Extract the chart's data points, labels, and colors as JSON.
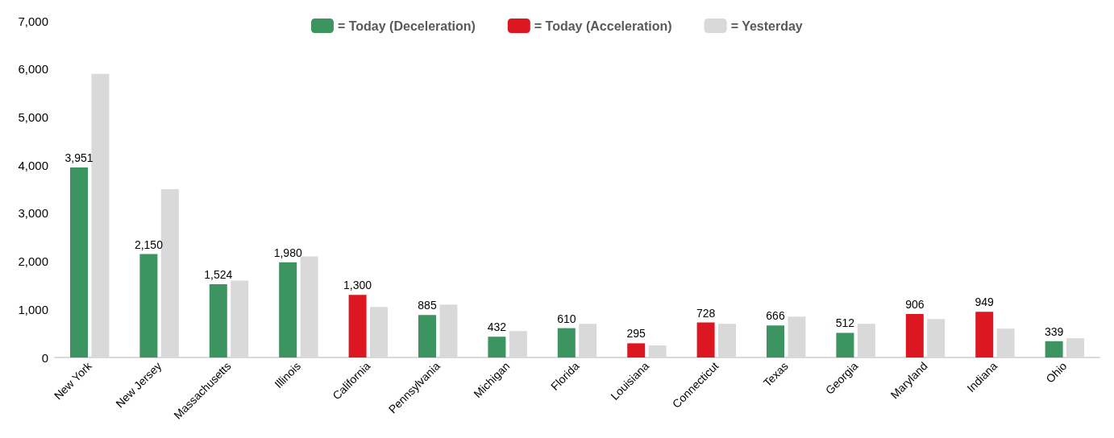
{
  "chart_data": {
    "type": "bar",
    "categories": [
      "New York",
      "New Jersey",
      "Massachusetts",
      "Illinois",
      "California",
      "Pennsylvania",
      "Michigan",
      "Florida",
      "Louisiana",
      "Connecticut",
      "Texas",
      "Georgia",
      "Maryland",
      "Indiana",
      "Ohio"
    ],
    "series": [
      {
        "name": "= Today (Deceleration)",
        "color": "#3c9461",
        "values": [
          3951,
          2150,
          1524,
          1980,
          null,
          885,
          432,
          610,
          null,
          null,
          666,
          512,
          null,
          null,
          339
        ],
        "value_labels": [
          "3,951",
          "2,150",
          "1,524",
          "1,980",
          null,
          "885",
          "432",
          "610",
          null,
          null,
          "666",
          "512",
          null,
          null,
          "339"
        ]
      },
      {
        "name": "= Today (Acceleration)",
        "color": "#dc1721",
        "values": [
          null,
          null,
          null,
          null,
          1300,
          null,
          null,
          null,
          295,
          728,
          null,
          null,
          906,
          949,
          null
        ],
        "value_labels": [
          null,
          null,
          null,
          null,
          "1,300",
          null,
          null,
          null,
          "295",
          "728",
          null,
          null,
          "906",
          "949",
          null
        ]
      },
      {
        "name": "= Yesterday",
        "color": "#d9d9d9",
        "values": [
          5900,
          3500,
          1600,
          2100,
          1050,
          1100,
          550,
          700,
          250,
          700,
          850,
          700,
          800,
          600,
          400
        ]
      }
    ],
    "ylim": [
      0,
      7000
    ],
    "yticks": [
      0,
      {
        "value": 1000,
        "label": "1,000"
      },
      {
        "value": 2000,
        "label": "2,000"
      },
      {
        "value": 3000,
        "label": "3,000"
      },
      {
        "value": 4000,
        "label": "4,000"
      },
      {
        "value": 5000,
        "label": "5,000"
      },
      {
        "value": 6000,
        "label": "6,000"
      },
      {
        "value": 7000,
        "label": "7,000"
      }
    ],
    "grid": false,
    "legend": "top"
  }
}
